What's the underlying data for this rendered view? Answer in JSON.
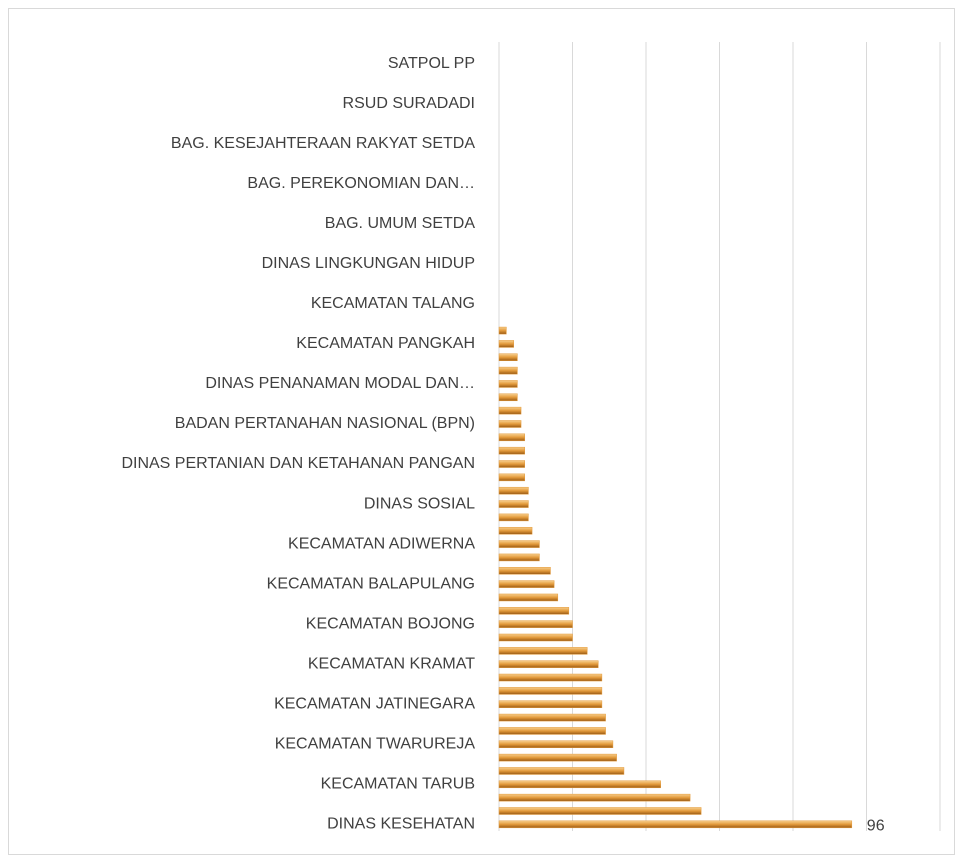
{
  "chart_data": {
    "type": "bar",
    "orientation": "horizontal",
    "categories": [
      "SATPOL PP",
      null,
      null,
      "RSUD SURADADI",
      null,
      null,
      "BAG. KESEJAHTERAAN RAKYAT SETDA",
      null,
      null,
      "BAG. PEREKONOMIAN DAN…",
      null,
      null,
      "BAG. UMUM SETDA",
      null,
      null,
      "DINAS LINGKUNGAN HIDUP",
      null,
      null,
      "KECAMATAN TALANG",
      null,
      null,
      "KECAMATAN PANGKAH",
      null,
      null,
      "DINAS PENANAMAN MODAL DAN…",
      null,
      null,
      "BADAN PERTANAHAN NASIONAL (BPN)",
      null,
      null,
      "DINAS PERTANIAN DAN KETAHANAN PANGAN",
      null,
      null,
      "DINAS SOSIAL",
      null,
      null,
      "KECAMATAN ADIWERNA",
      null,
      null,
      "KECAMATAN BALAPULANG",
      null,
      null,
      "KECAMATAN BOJONG",
      null,
      null,
      "KECAMATAN KRAMAT",
      null,
      null,
      "KECAMATAN JATINEGARA",
      null,
      null,
      "KECAMATAN TWARUREJA",
      null,
      null,
      "KECAMATAN TARUB",
      null,
      null,
      "DINAS KESEHATAN"
    ],
    "values": [
      0,
      0,
      0,
      0,
      0,
      0,
      0,
      0,
      0,
      0,
      0,
      0,
      0,
      0,
      0,
      0,
      0,
      0,
      0,
      0,
      2,
      4,
      5,
      5,
      5,
      5,
      6,
      6,
      7,
      7,
      7,
      7,
      8,
      8,
      8,
      9,
      11,
      11,
      14,
      15,
      16,
      19,
      20,
      20,
      24,
      27,
      28,
      28,
      28,
      29,
      29,
      31,
      32,
      34,
      44,
      52,
      55,
      96
    ],
    "value_labels": [
      null,
      null,
      null,
      null,
      null,
      null,
      null,
      null,
      null,
      null,
      null,
      null,
      null,
      null,
      null,
      null,
      null,
      null,
      null,
      null,
      null,
      null,
      null,
      null,
      null,
      null,
      null,
      null,
      null,
      null,
      null,
      null,
      null,
      null,
      null,
      null,
      null,
      null,
      null,
      null,
      null,
      null,
      null,
      null,
      null,
      null,
      null,
      null,
      null,
      null,
      null,
      null,
      null,
      null,
      null,
      null,
      null,
      "96"
    ],
    "color": "#e39a3b",
    "xlim": [
      0,
      120
    ],
    "xticks": [
      0,
      20,
      40,
      60,
      80,
      100,
      120
    ],
    "grid": true
  }
}
